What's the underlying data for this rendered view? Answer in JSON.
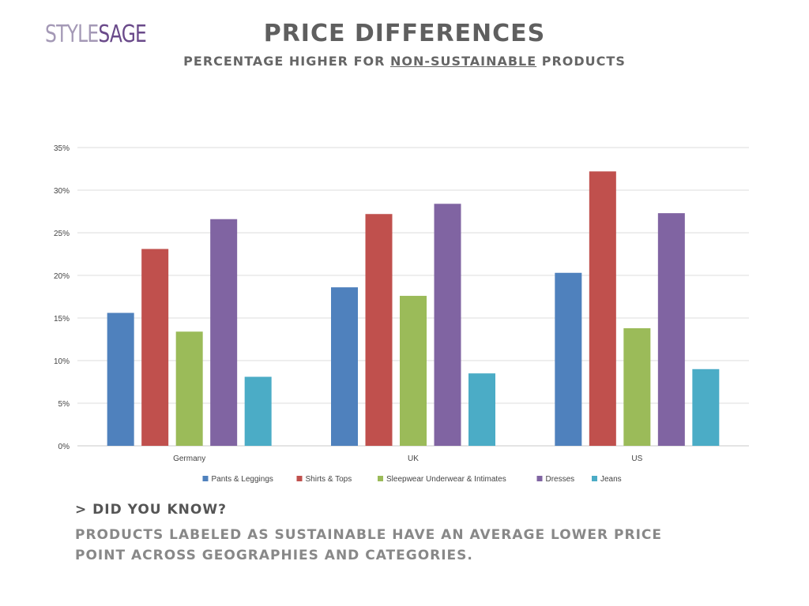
{
  "logo": {
    "part1": "STYLE",
    "part2": "SAGE"
  },
  "header": {
    "title": "PRICE DIFFERENCES",
    "subtitle_pre": "PERCENTAGE HIGHER FOR ",
    "subtitle_emph": "NON-SUSTAINABLE",
    "subtitle_post": " PRODUCTS"
  },
  "chart_data": {
    "type": "bar",
    "categories": [
      "Germany",
      "UK",
      "US"
    ],
    "series": [
      {
        "name": "Pants & Leggings",
        "color": "#4f81bd",
        "values": [
          15.6,
          18.6,
          20.3
        ]
      },
      {
        "name": "Shirts & Tops",
        "color": "#c0504d",
        "values": [
          23.1,
          27.2,
          32.2
        ]
      },
      {
        "name": "Sleepwear Underwear & Intimates",
        "color": "#9bbb59",
        "values": [
          13.4,
          17.6,
          13.8
        ]
      },
      {
        "name": "Dresses",
        "color": "#8064a2",
        "values": [
          26.6,
          28.4,
          27.3
        ]
      },
      {
        "name": "Jeans",
        "color": "#4bacc6",
        "values": [
          8.1,
          8.5,
          9.0
        ]
      }
    ],
    "ylim": [
      0,
      35
    ],
    "yticks": [
      "0%",
      "5%",
      "10%",
      "15%",
      "20%",
      "25%",
      "30%",
      "35%"
    ],
    "grid": true,
    "legend": "bottom"
  },
  "footer": {
    "heading": "> DID YOU KNOW?",
    "text": "PRODUCTS LABELED AS SUSTAINABLE HAVE AN AVERAGE LOWER PRICE POINT ACROSS GEOGRAPHIES AND CATEGORIES."
  }
}
